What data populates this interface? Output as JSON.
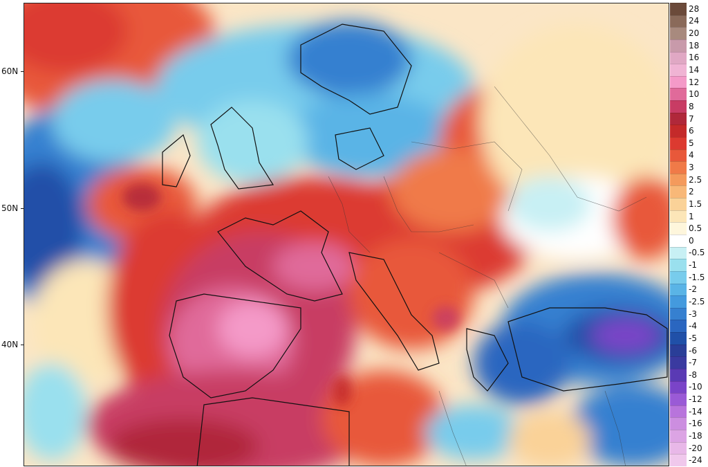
{
  "map": {
    "lat_labels": [
      "60N",
      "50N",
      "40N"
    ],
    "palette": {
      "ocean_warm": "#e8705a",
      "ocean_cool": "#5aa8e0",
      "deep_cool": "#2a5fb0",
      "very_warm": "#c8506e",
      "hot_pink": "#e88ab8",
      "neutral": "#f4f0e6",
      "purple": "#8a4ad0"
    }
  },
  "legend": {
    "items": [
      {
        "label": "28",
        "color": "#6b4a3a"
      },
      {
        "label": "24",
        "color": "#8a6a5a"
      },
      {
        "label": "20",
        "color": "#a88a7e"
      },
      {
        "label": "18",
        "color": "#c89aaa"
      },
      {
        "label": "16",
        "color": "#e0a8c4"
      },
      {
        "label": "14",
        "color": "#f0b4d4"
      },
      {
        "label": "12",
        "color": "#f49ac8"
      },
      {
        "label": "10",
        "color": "#e06a9a"
      },
      {
        "label": "8",
        "color": "#c83c64"
      },
      {
        "label": "7",
        "color": "#b0283a"
      },
      {
        "label": "6",
        "color": "#c42a2a"
      },
      {
        "label": "5",
        "color": "#dc3a30"
      },
      {
        "label": "4",
        "color": "#e8583a"
      },
      {
        "label": "3",
        "color": "#f07a48"
      },
      {
        "label": "2.5",
        "color": "#f49a5c"
      },
      {
        "label": "2",
        "color": "#f8b878"
      },
      {
        "label": "1.5",
        "color": "#fad298"
      },
      {
        "label": "1",
        "color": "#fce6b8"
      },
      {
        "label": "0.5",
        "color": "#fef6dc"
      },
      {
        "label": "0",
        "color": "#ffffff"
      },
      {
        "label": "-0.5",
        "color": "#c8f0f4"
      },
      {
        "label": "-1",
        "color": "#9ae0ee"
      },
      {
        "label": "-1.5",
        "color": "#78ccec"
      },
      {
        "label": "-2",
        "color": "#5ab4e6"
      },
      {
        "label": "-2.5",
        "color": "#449ade"
      },
      {
        "label": "-3",
        "color": "#3680d0"
      },
      {
        "label": "-4",
        "color": "#2a66c0"
      },
      {
        "label": "-5",
        "color": "#2050a8"
      },
      {
        "label": "-6",
        "color": "#2a3e98"
      },
      {
        "label": "-7",
        "color": "#3a3aa0"
      },
      {
        "label": "-8",
        "color": "#5a3ab4"
      },
      {
        "label": "-10",
        "color": "#7a44c8"
      },
      {
        "label": "-12",
        "color": "#9a5ad6"
      },
      {
        "label": "-14",
        "color": "#b874dc"
      },
      {
        "label": "-16",
        "color": "#cc8ee0"
      },
      {
        "label": "-18",
        "color": "#dca4e4"
      },
      {
        "label": "-20",
        "color": "#e8b8e8"
      },
      {
        "label": "-24",
        "color": "#f0c8ec"
      }
    ]
  }
}
